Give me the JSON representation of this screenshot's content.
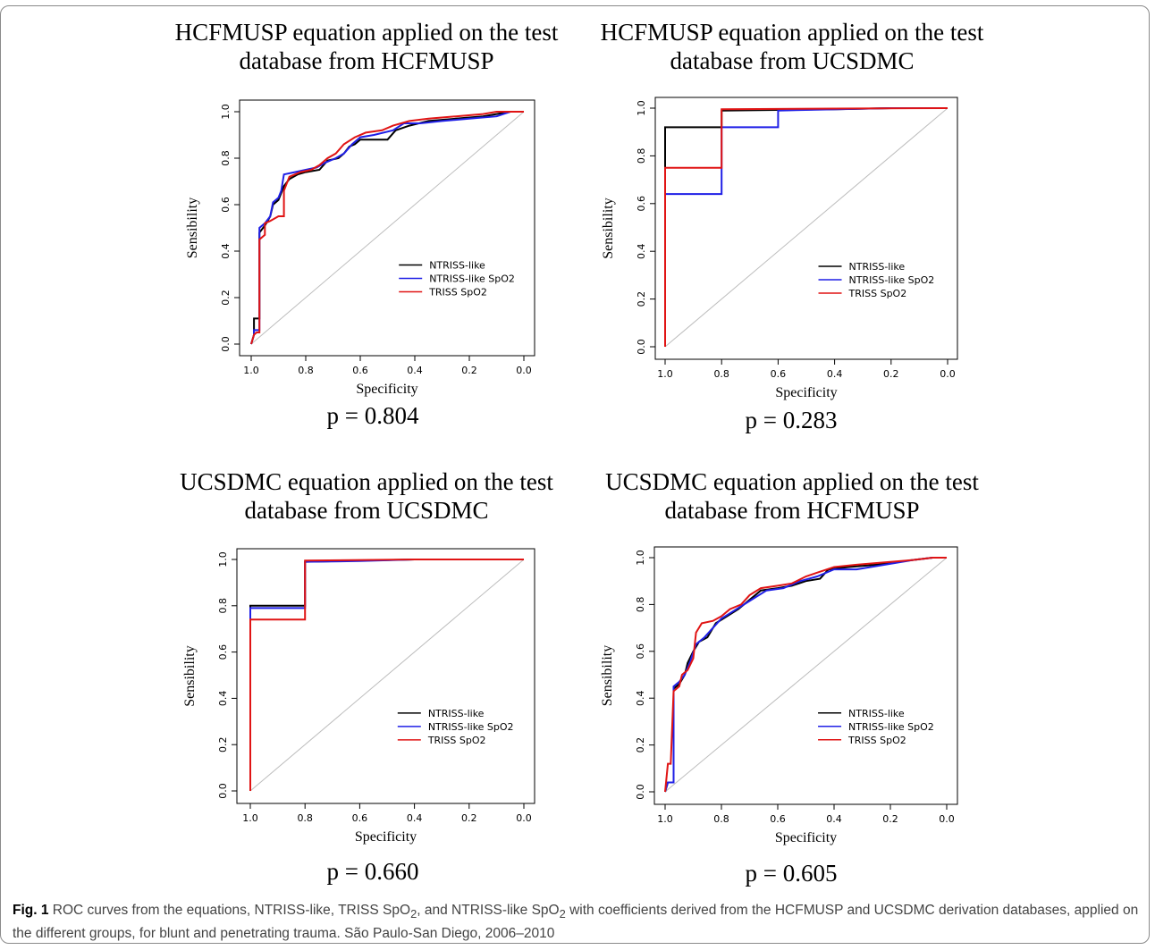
{
  "panels": [
    {
      "title": "HCFMUSP equation applied on the test database from HCFMUSP",
      "p_value": "p = 0.804"
    },
    {
      "title": "HCFMUSP equation applied on the test database from UCSDMC",
      "p_value": "p = 0.283"
    },
    {
      "title": "UCSDMC equation applied on the test database from UCSDMC",
      "p_value": "p = 0.660"
    },
    {
      "title": "UCSDMC equation applied on the test database from HCFMUSP",
      "p_value": "p = 0.605"
    }
  ],
  "caption": {
    "label": "Fig. 1",
    "text_before": " ROC curves from the equations, NTRISS-like, TRISS SpO",
    "sub1": "2",
    "text_middle": ", and NTRISS-like SpO",
    "sub2": "2",
    "text_after": " with coefficients derived from the HCFMUSP and UCSDMC derivation databases, applied on the different groups, for blunt and penetrating trauma. São Paulo-San Diego, 2006–2010"
  },
  "chart_data": [
    {
      "type": "line",
      "title": "HCFMUSP equation applied on the test database from HCFMUSP",
      "xlabel": "Specificity",
      "ylabel": "Sensibility",
      "xlim": [
        1.0,
        0.0
      ],
      "ylim": [
        0.0,
        1.0
      ],
      "x_ticks": [
        "1.0",
        "0.8",
        "0.6",
        "0.4",
        "0.2",
        "0.0"
      ],
      "y_ticks": [
        "0.0",
        "0.2",
        "0.4",
        "0.6",
        "0.8",
        "1.0"
      ],
      "legend_position": "bottom-right",
      "reference_line": "diagonal",
      "series": [
        {
          "name": "NTRISS-like",
          "color": "#000000",
          "points": [
            [
              1.0,
              0.0
            ],
            [
              0.99,
              0.04
            ],
            [
              0.99,
              0.11
            ],
            [
              0.97,
              0.11
            ],
            [
              0.97,
              0.48
            ],
            [
              0.95,
              0.51
            ],
            [
              0.93,
              0.55
            ],
            [
              0.92,
              0.6
            ],
            [
              0.9,
              0.62
            ],
            [
              0.88,
              0.68
            ],
            [
              0.86,
              0.71
            ],
            [
              0.83,
              0.73
            ],
            [
              0.8,
              0.74
            ],
            [
              0.75,
              0.75
            ],
            [
              0.72,
              0.79
            ],
            [
              0.68,
              0.8
            ],
            [
              0.66,
              0.82
            ],
            [
              0.64,
              0.85
            ],
            [
              0.62,
              0.86
            ],
            [
              0.6,
              0.88
            ],
            [
              0.5,
              0.88
            ],
            [
              0.47,
              0.92
            ],
            [
              0.42,
              0.94
            ],
            [
              0.35,
              0.96
            ],
            [
              0.25,
              0.97
            ],
            [
              0.15,
              0.98
            ],
            [
              0.05,
              1.0
            ],
            [
              0.0,
              1.0
            ]
          ]
        },
        {
          "name": "NTRISS-like SpO2",
          "color": "#1f1fe6",
          "points": [
            [
              1.0,
              0.0
            ],
            [
              0.99,
              0.04
            ],
            [
              0.99,
              0.06
            ],
            [
              0.97,
              0.06
            ],
            [
              0.97,
              0.5
            ],
            [
              0.95,
              0.52
            ],
            [
              0.93,
              0.55
            ],
            [
              0.92,
              0.61
            ],
            [
              0.9,
              0.63
            ],
            [
              0.89,
              0.66
            ],
            [
              0.88,
              0.73
            ],
            [
              0.84,
              0.74
            ],
            [
              0.8,
              0.75
            ],
            [
              0.76,
              0.76
            ],
            [
              0.73,
              0.78
            ],
            [
              0.69,
              0.8
            ],
            [
              0.66,
              0.82
            ],
            [
              0.63,
              0.86
            ],
            [
              0.6,
              0.89
            ],
            [
              0.55,
              0.9
            ],
            [
              0.48,
              0.92
            ],
            [
              0.44,
              0.95
            ],
            [
              0.38,
              0.95
            ],
            [
              0.3,
              0.96
            ],
            [
              0.2,
              0.97
            ],
            [
              0.1,
              0.98
            ],
            [
              0.05,
              1.0
            ],
            [
              0.0,
              1.0
            ]
          ]
        },
        {
          "name": "TRISS SpO2",
          "color": "#e01414",
          "points": [
            [
              1.0,
              0.0
            ],
            [
              0.99,
              0.04
            ],
            [
              0.98,
              0.05
            ],
            [
              0.97,
              0.05
            ],
            [
              0.97,
              0.45
            ],
            [
              0.95,
              0.47
            ],
            [
              0.95,
              0.52
            ],
            [
              0.93,
              0.53
            ],
            [
              0.9,
              0.55
            ],
            [
              0.88,
              0.55
            ],
            [
              0.88,
              0.66
            ],
            [
              0.86,
              0.72
            ],
            [
              0.82,
              0.74
            ],
            [
              0.78,
              0.75
            ],
            [
              0.75,
              0.77
            ],
            [
              0.72,
              0.8
            ],
            [
              0.69,
              0.82
            ],
            [
              0.66,
              0.86
            ],
            [
              0.62,
              0.89
            ],
            [
              0.58,
              0.91
            ],
            [
              0.52,
              0.92
            ],
            [
              0.48,
              0.94
            ],
            [
              0.42,
              0.96
            ],
            [
              0.35,
              0.97
            ],
            [
              0.25,
              0.98
            ],
            [
              0.15,
              0.99
            ],
            [
              0.1,
              1.0
            ],
            [
              0.0,
              1.0
            ]
          ]
        }
      ]
    },
    {
      "type": "line",
      "title": "HCFMUSP equation applied on the test database from UCSDMC",
      "xlabel": "Specificity",
      "ylabel": "Sensibility",
      "xlim": [
        1.0,
        0.0
      ],
      "ylim": [
        0.0,
        1.0
      ],
      "x_ticks": [
        "1.0",
        "0.8",
        "0.6",
        "0.4",
        "0.2",
        "0.0"
      ],
      "y_ticks": [
        "0.0",
        "0.2",
        "0.4",
        "0.6",
        "0.8",
        "1.0"
      ],
      "legend_position": "bottom-right",
      "reference_line": "diagonal",
      "series": [
        {
          "name": "NTRISS-like",
          "color": "#000000",
          "points": [
            [
              1.0,
              0.0
            ],
            [
              1.0,
              0.92
            ],
            [
              0.8,
              0.92
            ],
            [
              0.8,
              0.99
            ],
            [
              0.4,
              0.995
            ],
            [
              0.2,
              1.0
            ],
            [
              0.0,
              1.0
            ]
          ]
        },
        {
          "name": "NTRISS-like SpO2",
          "color": "#1f1fe6",
          "points": [
            [
              1.0,
              0.0
            ],
            [
              1.0,
              0.64
            ],
            [
              0.8,
              0.64
            ],
            [
              0.8,
              0.92
            ],
            [
              0.6,
              0.92
            ],
            [
              0.6,
              0.99
            ],
            [
              0.2,
              1.0
            ],
            [
              0.0,
              1.0
            ]
          ]
        },
        {
          "name": "TRISS SpO2",
          "color": "#e01414",
          "points": [
            [
              1.0,
              0.0
            ],
            [
              1.0,
              0.75
            ],
            [
              0.8,
              0.75
            ],
            [
              0.8,
              0.995
            ],
            [
              0.4,
              0.998
            ],
            [
              0.0,
              1.0
            ]
          ]
        }
      ]
    },
    {
      "type": "line",
      "title": "UCSDMC equation applied on the test database from UCSDMC",
      "xlabel": "Specificity",
      "ylabel": "Sensibility",
      "xlim": [
        1.0,
        0.0
      ],
      "ylim": [
        0.0,
        1.0
      ],
      "x_ticks": [
        "1.0",
        "0.8",
        "0.6",
        "0.4",
        "0.2",
        "0.0"
      ],
      "y_ticks": [
        "0.0",
        "0.2",
        "0.4",
        "0.6",
        "0.8",
        "1.0"
      ],
      "legend_position": "bottom-right",
      "reference_line": "diagonal",
      "series": [
        {
          "name": "NTRISS-like",
          "color": "#000000",
          "points": [
            [
              1.0,
              0.0
            ],
            [
              1.0,
              0.8
            ],
            [
              0.8,
              0.8
            ],
            [
              0.8,
              0.99
            ],
            [
              0.6,
              0.995
            ],
            [
              0.4,
              1.0
            ],
            [
              0.0,
              1.0
            ]
          ]
        },
        {
          "name": "NTRISS-like SpO2",
          "color": "#1f1fe6",
          "points": [
            [
              1.0,
              0.0
            ],
            [
              1.0,
              0.79
            ],
            [
              0.8,
              0.79
            ],
            [
              0.8,
              0.99
            ],
            [
              0.6,
              0.993
            ],
            [
              0.4,
              1.0
            ],
            [
              0.0,
              1.0
            ]
          ]
        },
        {
          "name": "TRISS SpO2",
          "color": "#e01414",
          "points": [
            [
              1.0,
              0.0
            ],
            [
              1.0,
              0.74
            ],
            [
              0.8,
              0.74
            ],
            [
              0.8,
              0.995
            ],
            [
              0.4,
              1.0
            ],
            [
              0.0,
              1.0
            ]
          ]
        }
      ]
    },
    {
      "type": "line",
      "title": "UCSDMC equation applied on the test database from HCFMUSP",
      "xlabel": "Specificity",
      "ylabel": "Sensibility",
      "xlim": [
        1.0,
        0.0
      ],
      "ylim": [
        0.0,
        1.0
      ],
      "x_ticks": [
        "1.0",
        "0.8",
        "0.6",
        "0.4",
        "0.2",
        "0.0"
      ],
      "y_ticks": [
        "0.0",
        "0.2",
        "0.4",
        "0.6",
        "0.8",
        "1.0"
      ],
      "legend_position": "bottom-right",
      "reference_line": "diagonal",
      "series": [
        {
          "name": "NTRISS-like",
          "color": "#000000",
          "points": [
            [
              1.0,
              0.0
            ],
            [
              0.99,
              0.04
            ],
            [
              0.97,
              0.04
            ],
            [
              0.97,
              0.44
            ],
            [
              0.95,
              0.46
            ],
            [
              0.93,
              0.5
            ],
            [
              0.92,
              0.55
            ],
            [
              0.9,
              0.6
            ],
            [
              0.88,
              0.64
            ],
            [
              0.85,
              0.66
            ],
            [
              0.82,
              0.72
            ],
            [
              0.78,
              0.75
            ],
            [
              0.74,
              0.78
            ],
            [
              0.7,
              0.82
            ],
            [
              0.66,
              0.86
            ],
            [
              0.6,
              0.87
            ],
            [
              0.55,
              0.88
            ],
            [
              0.5,
              0.9
            ],
            [
              0.45,
              0.91
            ],
            [
              0.42,
              0.95
            ],
            [
              0.35,
              0.96
            ],
            [
              0.25,
              0.97
            ],
            [
              0.12,
              0.99
            ],
            [
              0.05,
              1.0
            ],
            [
              0.0,
              1.0
            ]
          ]
        },
        {
          "name": "NTRISS-like SpO2",
          "color": "#1f1fe6",
          "points": [
            [
              1.0,
              0.0
            ],
            [
              0.99,
              0.04
            ],
            [
              0.97,
              0.04
            ],
            [
              0.97,
              0.45
            ],
            [
              0.95,
              0.47
            ],
            [
              0.93,
              0.5
            ],
            [
              0.91,
              0.56
            ],
            [
              0.89,
              0.63
            ],
            [
              0.86,
              0.66
            ],
            [
              0.83,
              0.7
            ],
            [
              0.8,
              0.74
            ],
            [
              0.76,
              0.77
            ],
            [
              0.72,
              0.8
            ],
            [
              0.68,
              0.83
            ],
            [
              0.64,
              0.86
            ],
            [
              0.58,
              0.87
            ],
            [
              0.52,
              0.9
            ],
            [
              0.46,
              0.92
            ],
            [
              0.4,
              0.95
            ],
            [
              0.32,
              0.95
            ],
            [
              0.22,
              0.97
            ],
            [
              0.12,
              0.99
            ],
            [
              0.05,
              1.0
            ],
            [
              0.0,
              1.0
            ]
          ]
        },
        {
          "name": "TRISS SpO2",
          "color": "#e01414",
          "points": [
            [
              1.0,
              0.0
            ],
            [
              0.99,
              0.12
            ],
            [
              0.98,
              0.12
            ],
            [
              0.97,
              0.43
            ],
            [
              0.95,
              0.45
            ],
            [
              0.94,
              0.5
            ],
            [
              0.92,
              0.52
            ],
            [
              0.9,
              0.57
            ],
            [
              0.89,
              0.68
            ],
            [
              0.87,
              0.72
            ],
            [
              0.83,
              0.73
            ],
            [
              0.8,
              0.75
            ],
            [
              0.77,
              0.78
            ],
            [
              0.73,
              0.8
            ],
            [
              0.7,
              0.84
            ],
            [
              0.66,
              0.87
            ],
            [
              0.6,
              0.88
            ],
            [
              0.55,
              0.89
            ],
            [
              0.5,
              0.92
            ],
            [
              0.45,
              0.94
            ],
            [
              0.4,
              0.96
            ],
            [
              0.32,
              0.97
            ],
            [
              0.22,
              0.98
            ],
            [
              0.12,
              0.99
            ],
            [
              0.05,
              1.0
            ],
            [
              0.0,
              1.0
            ]
          ]
        }
      ]
    }
  ]
}
